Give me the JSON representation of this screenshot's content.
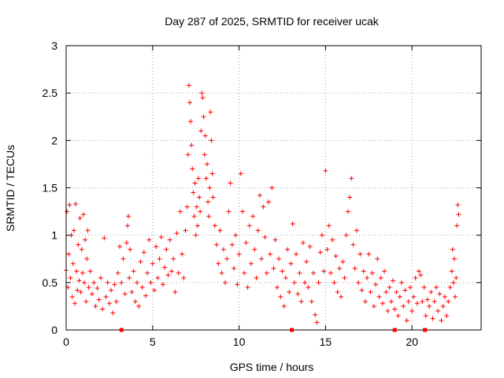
{
  "chart_data": {
    "type": "scatter",
    "title": "Day 287 of 2025, SRMTID for receiver ucak",
    "xlabel": "GPS time / hours",
    "ylabel": "SRMTID / TECUs",
    "xlim": [
      0,
      24
    ],
    "ylim": [
      0,
      3
    ],
    "grid": true,
    "marker": "+",
    "x_ticks": [
      0,
      5,
      10,
      15,
      20
    ],
    "x_tick_labels": [
      "0",
      "5",
      "10",
      "15",
      "20"
    ],
    "y_ticks": [
      0,
      0.5,
      1,
      1.5,
      2,
      2.5,
      3
    ],
    "y_tick_labels": [
      "0",
      "0.5",
      "1",
      "1.5",
      "2",
      "2.5",
      "3"
    ],
    "series": [
      {
        "name": "SRMTID",
        "color": "#ff0000",
        "points": [
          [
            0.0,
            0.63
          ],
          [
            0.05,
            1.25
          ],
          [
            0.1,
            0.45
          ],
          [
            0.15,
            0.8
          ],
          [
            0.2,
            1.32
          ],
          [
            0.25,
            0.55
          ],
          [
            0.3,
            1.0
          ],
          [
            0.35,
            0.35
          ],
          [
            0.4,
            0.7
          ],
          [
            0.45,
            1.05
          ],
          [
            0.5,
            0.28
          ],
          [
            0.55,
            1.33
          ],
          [
            0.6,
            0.62
          ],
          [
            0.65,
            0.42
          ],
          [
            0.7,
            0.9
          ],
          [
            0.75,
            0.52
          ],
          [
            0.8,
            1.18
          ],
          [
            0.85,
            0.4
          ],
          [
            0.9,
            0.85
          ],
          [
            0.95,
            0.6
          ],
          [
            1.0,
            1.22
          ],
          [
            1.05,
            0.5
          ],
          [
            1.1,
            0.95
          ],
          [
            1.15,
            0.3
          ],
          [
            1.2,
            0.75
          ],
          [
            1.25,
            1.05
          ],
          [
            1.3,
            0.45
          ],
          [
            1.4,
            0.62
          ],
          [
            1.5,
            0.38
          ],
          [
            1.6,
            0.5
          ],
          [
            1.7,
            0.25
          ],
          [
            1.8,
            0.44
          ],
          [
            1.9,
            0.32
          ],
          [
            2.0,
            0.55
          ],
          [
            2.1,
            0.22
          ],
          [
            2.2,
            0.97
          ],
          [
            2.3,
            0.35
          ],
          [
            2.4,
            0.5
          ],
          [
            2.5,
            0.28
          ],
          [
            2.6,
            0.42
          ],
          [
            2.7,
            0.18
          ],
          [
            2.8,
            0.48
          ],
          [
            2.9,
            0.3
          ],
          [
            3.0,
            0.6
          ],
          [
            3.1,
            0.88
          ],
          [
            3.2,
            0.5
          ],
          [
            3.3,
            0.75
          ],
          [
            3.4,
            0.38
          ],
          [
            3.5,
            0.92
          ],
          [
            3.55,
            1.1
          ],
          [
            3.6,
            1.2
          ],
          [
            3.65,
            0.55
          ],
          [
            3.7,
            0.85
          ],
          [
            3.8,
            0.4
          ],
          [
            3.9,
            0.62
          ],
          [
            4.0,
            0.3
          ],
          [
            4.1,
            0.5
          ],
          [
            4.2,
            0.25
          ],
          [
            4.3,
            0.72
          ],
          [
            4.4,
            0.45
          ],
          [
            4.5,
            0.82
          ],
          [
            4.6,
            0.36
          ],
          [
            4.7,
            0.6
          ],
          [
            4.8,
            0.95
          ],
          [
            4.9,
            0.5
          ],
          [
            5.0,
            0.7
          ],
          [
            5.1,
            0.42
          ],
          [
            5.2,
            0.88
          ],
          [
            5.3,
            0.55
          ],
          [
            5.4,
            0.75
          ],
          [
            5.5,
            0.98
          ],
          [
            5.6,
            0.48
          ],
          [
            5.7,
            0.66
          ],
          [
            5.8,
            0.85
          ],
          [
            5.9,
            0.58
          ],
          [
            6.0,
            0.95
          ],
          [
            6.1,
            0.62
          ],
          [
            6.2,
            0.75
          ],
          [
            6.3,
            0.4
          ],
          [
            6.4,
            1.02
          ],
          [
            6.5,
            0.6
          ],
          [
            6.6,
            1.25
          ],
          [
            6.7,
            0.8
          ],
          [
            6.8,
            0.55
          ],
          [
            6.9,
            1.05
          ],
          [
            7.0,
            1.3
          ],
          [
            7.05,
            1.85
          ],
          [
            7.1,
            2.58
          ],
          [
            7.15,
            2.4
          ],
          [
            7.2,
            2.2
          ],
          [
            7.25,
            1.95
          ],
          [
            7.3,
            1.7
          ],
          [
            7.35,
            1.45
          ],
          [
            7.4,
            1.2
          ],
          [
            7.45,
            1.55
          ],
          [
            7.5,
            1.0
          ],
          [
            7.55,
            1.3
          ],
          [
            7.6,
            1.1
          ],
          [
            7.65,
            1.6
          ],
          [
            7.7,
            1.4
          ],
          [
            7.75,
            1.25
          ],
          [
            7.8,
            2.1
          ],
          [
            7.85,
            2.5
          ],
          [
            7.9,
            2.45
          ],
          [
            7.95,
            2.25
          ],
          [
            8.0,
            1.85
          ],
          [
            8.05,
            2.05
          ],
          [
            8.1,
            1.6
          ],
          [
            8.15,
            1.75
          ],
          [
            8.2,
            1.35
          ],
          [
            8.25,
            1.2
          ],
          [
            8.3,
            1.5
          ],
          [
            8.35,
            2.3
          ],
          [
            8.4,
            2.0
          ],
          [
            8.45,
            1.65
          ],
          [
            8.5,
            1.4
          ],
          [
            8.6,
            1.1
          ],
          [
            8.7,
            0.9
          ],
          [
            8.8,
            0.7
          ],
          [
            8.9,
            1.05
          ],
          [
            9.0,
            0.6
          ],
          [
            9.1,
            0.85
          ],
          [
            9.2,
            0.5
          ],
          [
            9.3,
            0.75
          ],
          [
            9.4,
            1.25
          ],
          [
            9.5,
            1.55
          ],
          [
            9.6,
            0.9
          ],
          [
            9.7,
            0.65
          ],
          [
            9.8,
            1.0
          ],
          [
            9.9,
            0.48
          ],
          [
            10.0,
            0.8
          ],
          [
            10.1,
            1.65
          ],
          [
            10.2,
            1.25
          ],
          [
            10.3,
            0.6
          ],
          [
            10.4,
            0.92
          ],
          [
            10.5,
            0.45
          ],
          [
            10.6,
            1.1
          ],
          [
            10.7,
            0.7
          ],
          [
            10.8,
            1.2
          ],
          [
            10.9,
            0.85
          ],
          [
            11.0,
            0.55
          ],
          [
            11.1,
            1.05
          ],
          [
            11.2,
            1.42
          ],
          [
            11.3,
            0.75
          ],
          [
            11.4,
            1.3
          ],
          [
            11.5,
            0.98
          ],
          [
            11.6,
            0.6
          ],
          [
            11.7,
            1.35
          ],
          [
            11.8,
            0.8
          ],
          [
            11.9,
            1.5
          ],
          [
            12.0,
            0.65
          ],
          [
            12.1,
            0.95
          ],
          [
            12.2,
            0.45
          ],
          [
            12.3,
            0.75
          ],
          [
            12.4,
            0.35
          ],
          [
            12.5,
            0.62
          ],
          [
            12.6,
            0.25
          ],
          [
            12.7,
            0.55
          ],
          [
            12.8,
            0.85
          ],
          [
            12.9,
            0.4
          ],
          [
            13.0,
            0.7
          ],
          [
            13.1,
            1.12
          ],
          [
            13.2,
            0.5
          ],
          [
            13.3,
            0.8
          ],
          [
            13.4,
            0.38
          ],
          [
            13.5,
            0.6
          ],
          [
            13.6,
            0.3
          ],
          [
            13.7,
            0.92
          ],
          [
            13.8,
            0.5
          ],
          [
            13.9,
            0.72
          ],
          [
            14.0,
            0.45
          ],
          [
            14.1,
            0.88
          ],
          [
            14.2,
            0.3
          ],
          [
            14.3,
            0.6
          ],
          [
            14.4,
            0.16
          ],
          [
            14.5,
            0.08
          ],
          [
            14.6,
            0.5
          ],
          [
            14.7,
            0.82
          ],
          [
            14.8,
            1.0
          ],
          [
            14.9,
            0.62
          ],
          [
            15.0,
            1.68
          ],
          [
            15.1,
            0.85
          ],
          [
            15.2,
            1.1
          ],
          [
            15.3,
            0.6
          ],
          [
            15.4,
            0.95
          ],
          [
            15.5,
            0.5
          ],
          [
            15.6,
            0.78
          ],
          [
            15.7,
            0.4
          ],
          [
            15.8,
            0.65
          ],
          [
            15.9,
            0.35
          ],
          [
            16.0,
            0.72
          ],
          [
            16.1,
            0.55
          ],
          [
            16.2,
            1.0
          ],
          [
            16.3,
            1.25
          ],
          [
            16.4,
            1.4
          ],
          [
            16.5,
            1.6
          ],
          [
            16.6,
            0.9
          ],
          [
            16.7,
            0.65
          ],
          [
            16.8,
            1.05
          ],
          [
            16.9,
            0.5
          ],
          [
            17.0,
            0.8
          ],
          [
            17.1,
            0.42
          ],
          [
            17.2,
            0.62
          ],
          [
            17.3,
            0.3
          ],
          [
            17.4,
            0.55
          ],
          [
            17.5,
            0.8
          ],
          [
            17.6,
            0.4
          ],
          [
            17.7,
            0.6
          ],
          [
            17.8,
            0.25
          ],
          [
            17.9,
            0.48
          ],
          [
            18.0,
            0.75
          ],
          [
            18.1,
            0.35
          ],
          [
            18.2,
            0.55
          ],
          [
            18.3,
            0.28
          ],
          [
            18.4,
            0.62
          ],
          [
            18.5,
            0.4
          ],
          [
            18.6,
            0.2
          ],
          [
            18.7,
            0.45
          ],
          [
            18.8,
            0.3
          ],
          [
            18.9,
            0.52
          ],
          [
            19.0,
            0.22
          ],
          [
            19.1,
            0.4
          ],
          [
            19.2,
            0.15
          ],
          [
            19.3,
            0.35
          ],
          [
            19.4,
            0.5
          ],
          [
            19.5,
            0.25
          ],
          [
            19.6,
            0.42
          ],
          [
            19.7,
            0.1
          ],
          [
            19.8,
            0.3
          ],
          [
            19.9,
            0.45
          ],
          [
            20.0,
            0.2
          ],
          [
            20.1,
            0.35
          ],
          [
            20.2,
            0.55
          ],
          [
            20.3,
            0.28
          ],
          [
            20.4,
            0.62
          ],
          [
            20.5,
            0.58
          ],
          [
            20.6,
            0.3
          ],
          [
            20.7,
            0.45
          ],
          [
            20.8,
            0.15
          ],
          [
            20.9,
            0.32
          ],
          [
            21.0,
            0.25
          ],
          [
            21.1,
            0.4
          ],
          [
            21.2,
            0.12
          ],
          [
            21.3,
            0.3
          ],
          [
            21.4,
            0.45
          ],
          [
            21.5,
            0.2
          ],
          [
            21.6,
            0.38
          ],
          [
            21.7,
            0.1
          ],
          [
            21.8,
            0.25
          ],
          [
            21.9,
            0.35
          ],
          [
            22.0,
            0.15
          ],
          [
            22.1,
            0.3
          ],
          [
            22.2,
            0.45
          ],
          [
            22.3,
            0.62
          ],
          [
            22.35,
            0.85
          ],
          [
            22.4,
            0.5
          ],
          [
            22.45,
            0.75
          ],
          [
            22.5,
            0.35
          ],
          [
            22.55,
            0.55
          ],
          [
            22.6,
            1.1
          ],
          [
            22.65,
            1.32
          ],
          [
            22.7,
            1.22
          ]
        ]
      }
    ],
    "gap_markers_x": [
      3.2,
      13.05,
      19.0,
      20.75
    ]
  }
}
